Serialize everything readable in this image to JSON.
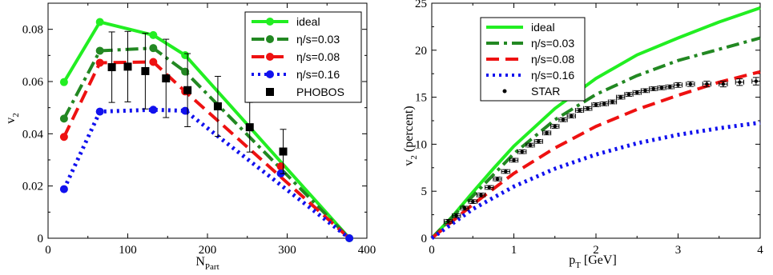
{
  "chart_data": [
    {
      "type": "line",
      "xlabel_main": "N",
      "xlabel_sub": "Part",
      "ylabel_main": "v",
      "ylabel_sub": "2",
      "xlim": [
        0,
        400
      ],
      "ylim": [
        0,
        0.09
      ],
      "xticks": [
        0,
        100,
        200,
        300,
        400
      ],
      "yticks": [
        0,
        0.02,
        0.04,
        0.06,
        0.08
      ],
      "xtick_labels": [
        "0",
        "100",
        "200",
        "300",
        "400"
      ],
      "ytick_labels": [
        "0",
        "0.02",
        "0.04",
        "0.06",
        "0.08"
      ],
      "legend_position": "top-right",
      "series": [
        {
          "name": "ideal",
          "color": "#22ee22",
          "dash": "solid",
          "x": [
            20,
            65,
            132,
            172,
            378
          ],
          "y": [
            0.0598,
            0.0828,
            0.0778,
            0.0701,
            0
          ]
        },
        {
          "name": "η/s=0.03",
          "color": "#228822",
          "dash": "dashdot",
          "x": [
            20,
            65,
            132,
            172,
            378
          ],
          "y": [
            0.0458,
            0.0718,
            0.0728,
            0.0638,
            0
          ]
        },
        {
          "name": "η/s=0.08",
          "color": "#ee1111",
          "dash": "dash",
          "x": [
            20,
            65,
            132,
            172,
            378
          ],
          "y": [
            0.0388,
            0.0672,
            0.0675,
            0.0562,
            0
          ]
        },
        {
          "name": "η/s=0.16",
          "color": "#1111ee",
          "dash": "dot",
          "x": [
            20,
            65,
            132,
            172,
            378
          ],
          "y": [
            0.0188,
            0.0485,
            0.0492,
            0.0488,
            0
          ]
        }
      ],
      "markers": [
        {
          "series": 0,
          "x": [
            20,
            65,
            132,
            172,
            378
          ],
          "y": [
            0.0598,
            0.0828,
            0.0778,
            0.0701,
            0
          ]
        },
        {
          "series": 1,
          "x": [
            20,
            65,
            132,
            172
          ],
          "y": [
            0.0458,
            0.0718,
            0.0728,
            0.0638
          ]
        },
        {
          "series": 2,
          "x": [
            20,
            65,
            132,
            172,
            292
          ],
          "y": [
            0.0388,
            0.0672,
            0.0675,
            0.0562,
            0.0275
          ]
        },
        {
          "series": 3,
          "x": [
            20,
            65,
            132,
            172,
            292,
            378
          ],
          "y": [
            0.0188,
            0.0485,
            0.0492,
            0.0488,
            0.0248,
            0
          ]
        }
      ],
      "data_points": {
        "name": "PHOBOS",
        "x": [
          80,
          100,
          122,
          148,
          175,
          213,
          253,
          295
        ],
        "y": [
          0.0655,
          0.0657,
          0.064,
          0.0612,
          0.0567,
          0.0505,
          0.0425,
          0.0332
        ],
        "err": [
          0.0135,
          0.0135,
          0.0145,
          0.015,
          0.014,
          0.0115,
          0.0095,
          0.0085
        ]
      }
    },
    {
      "type": "line",
      "xlabel_main": "p",
      "xlabel_sub": "T",
      "xlabel_rest": " [GeV]",
      "ylabel_main": "v",
      "ylabel_sub": "2",
      "ylabel_rest": " (percent)",
      "xlim": [
        0,
        4
      ],
      "ylim": [
        0,
        25
      ],
      "xticks": [
        0,
        1,
        2,
        3,
        4
      ],
      "yticks": [
        0,
        5,
        10,
        15,
        20,
        25
      ],
      "xtick_labels": [
        "0",
        "1",
        "2",
        "3",
        "4"
      ],
      "ytick_labels": [
        "0",
        "5",
        "10",
        "15",
        "20",
        "25"
      ],
      "legend_position": "top-left",
      "series": [
        {
          "name": "ideal",
          "color": "#22ee22",
          "dash": "solid",
          "x": [
            0,
            0.25,
            0.5,
            0.75,
            1,
            1.5,
            2,
            2.5,
            3,
            3.5,
            4
          ],
          "y": [
            0,
            2.3,
            4.9,
            7.4,
            9.8,
            13.8,
            17.0,
            19.5,
            21.3,
            23.0,
            24.5
          ]
        },
        {
          "name": "η/s=0.03",
          "color": "#228822",
          "dash": "dashdot",
          "x": [
            0,
            0.5,
            1,
            1.5,
            2,
            2.5,
            3,
            3.5,
            4
          ],
          "y": [
            0,
            4.5,
            9.0,
            12.6,
            15.3,
            17.3,
            18.9,
            20.1,
            21.3
          ]
        },
        {
          "name": "η/s=0.08",
          "color": "#ee1111",
          "dash": "dash",
          "x": [
            0,
            0.5,
            1,
            1.5,
            2,
            2.5,
            3,
            3.5,
            4
          ],
          "y": [
            0,
            3.6,
            6.9,
            9.6,
            11.9,
            13.7,
            15.2,
            16.6,
            17.7
          ]
        },
        {
          "name": "η/s=0.16",
          "color": "#1111ee",
          "dash": "dot",
          "x": [
            0,
            0.5,
            1,
            1.5,
            2,
            2.5,
            3,
            3.5,
            4
          ],
          "y": [
            0,
            3.1,
            5.5,
            7.4,
            8.9,
            10.1,
            11.0,
            11.7,
            12.3
          ]
        }
      ],
      "markers": [],
      "data_points": {
        "name": "STAR",
        "x": [
          0.2,
          0.3,
          0.4,
          0.5,
          0.6,
          0.7,
          0.8,
          0.9,
          1.0,
          1.1,
          1.2,
          1.3,
          1.4,
          1.5,
          1.6,
          1.7,
          1.8,
          1.9,
          2.0,
          2.1,
          2.2,
          2.3,
          2.4,
          2.5,
          2.6,
          2.7,
          2.8,
          2.9,
          3.0,
          3.15,
          3.35,
          3.55,
          3.75,
          3.95
        ],
        "y": [
          1.8,
          2.4,
          3.2,
          3.9,
          4.6,
          5.4,
          6.3,
          7.1,
          8.3,
          9.2,
          9.9,
          10.3,
          11.2,
          11.9,
          12.6,
          13.0,
          13.6,
          13.8,
          14.2,
          14.3,
          14.5,
          15.0,
          15.3,
          15.5,
          15.7,
          15.9,
          16.0,
          16.1,
          16.3,
          16.4,
          16.4,
          16.4,
          16.6,
          16.7
        ],
        "err": [
          0.2,
          0.2,
          0.2,
          0.2,
          0.2,
          0.2,
          0.2,
          0.2,
          0.2,
          0.2,
          0.2,
          0.2,
          0.2,
          0.2,
          0.2,
          0.2,
          0.2,
          0.2,
          0.2,
          0.2,
          0.2,
          0.2,
          0.2,
          0.2,
          0.2,
          0.2,
          0.2,
          0.2,
          0.25,
          0.25,
          0.3,
          0.3,
          0.35,
          0.4
        ],
        "xerr": 0.05
      }
    }
  ]
}
